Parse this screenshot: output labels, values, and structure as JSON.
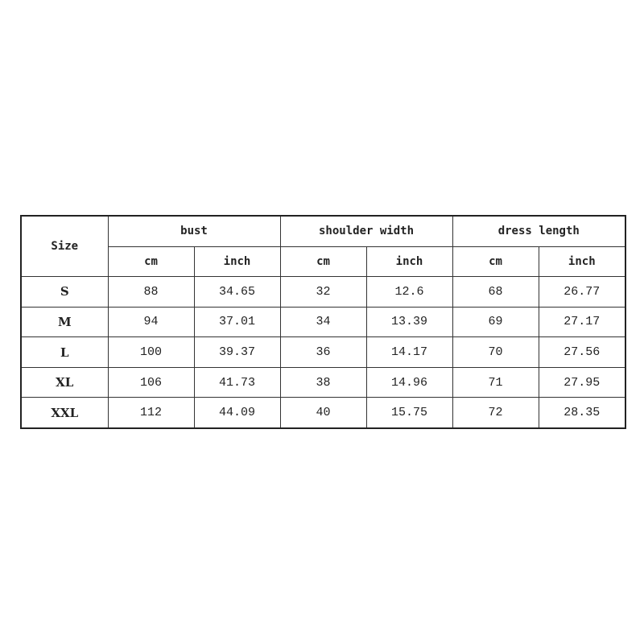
{
  "table": {
    "size_header": "Size",
    "groups": [
      "bust",
      "shoulder width",
      "dress length"
    ],
    "units": [
      "cm",
      "inch",
      "cm",
      "inch",
      "cm",
      "inch"
    ],
    "rows": [
      {
        "size": "S",
        "values": [
          "88",
          "34.65",
          "32",
          "12.6",
          "68",
          "26.77"
        ]
      },
      {
        "size": "M",
        "values": [
          "94",
          "37.01",
          "34",
          "13.39",
          "69",
          "27.17"
        ]
      },
      {
        "size": "L",
        "values": [
          "100",
          "39.37",
          "36",
          "14.17",
          "70",
          "27.56"
        ]
      },
      {
        "size": "XL",
        "values": [
          "106",
          "41.73",
          "38",
          "14.96",
          "71",
          "27.95"
        ]
      },
      {
        "size": "XXL",
        "values": [
          "112",
          "44.09",
          "40",
          "15.75",
          "72",
          "28.35"
        ]
      }
    ]
  }
}
